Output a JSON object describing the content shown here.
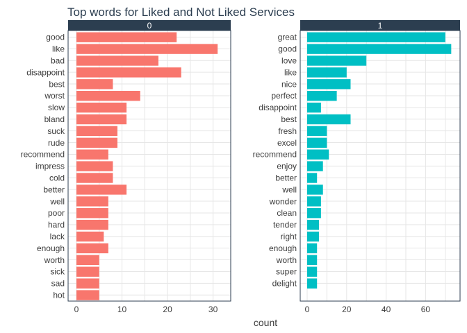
{
  "chart_data": {
    "type": "bar",
    "orientation": "horizontal",
    "title": "Top words for Liked and Not Liked Services",
    "xlabel": "count",
    "ylabel": "",
    "grid": true,
    "legend": "none",
    "panels": [
      {
        "facet_label": "0",
        "color": "#F8766D",
        "xlim": [
          0,
          32.5
        ],
        "xticks": [
          0,
          10,
          20,
          30
        ],
        "categories": [
          "good",
          "like",
          "bad",
          "disappoint",
          "best",
          "worst",
          "slow",
          "bland",
          "suck",
          "rude",
          "recommend",
          "impress",
          "cold",
          "better",
          "well",
          "poor",
          "hard",
          "lack",
          "enough",
          "worth",
          "sick",
          "sad",
          "hot"
        ],
        "values": [
          22,
          31,
          18,
          23,
          8,
          14,
          11,
          11,
          9,
          9,
          7,
          8,
          8,
          11,
          7,
          7,
          7,
          6,
          7,
          5,
          5,
          5,
          5
        ]
      },
      {
        "facet_label": "1",
        "color": "#00BFC4",
        "xlim": [
          0,
          75
        ],
        "xticks": [
          0,
          20,
          40,
          60
        ],
        "categories": [
          "great",
          "good",
          "love",
          "like",
          "nice",
          "perfect",
          "disappoint",
          "best",
          "fresh",
          "excel",
          "recommend",
          "enjoy",
          "better",
          "well",
          "wonder",
          "clean",
          "tender",
          "right",
          "enough",
          "worth",
          "super",
          "delight"
        ],
        "values": [
          70,
          73,
          30,
          20,
          22,
          15,
          7,
          22,
          10,
          10,
          11,
          8,
          5,
          8,
          7,
          7,
          6,
          6,
          5,
          5,
          5,
          5
        ]
      }
    ]
  },
  "colors": {
    "strip_bg": "#2c3e50",
    "border": "#2c3e50",
    "grid": "#e6e6e6"
  }
}
